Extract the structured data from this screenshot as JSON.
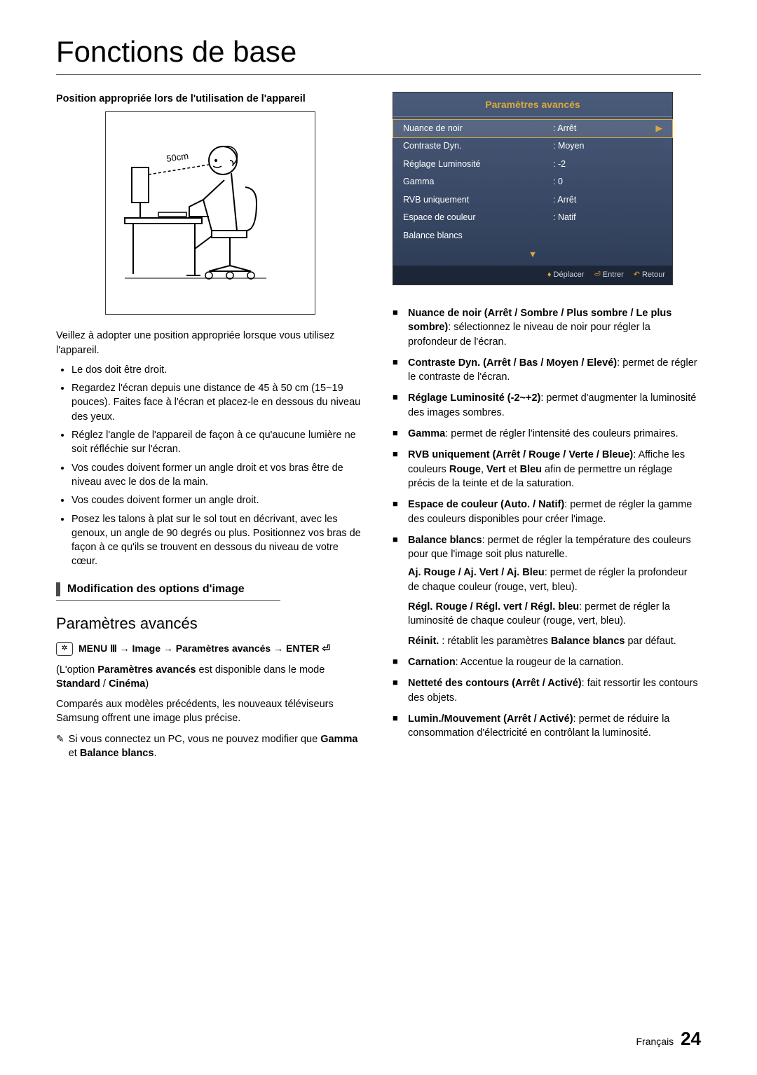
{
  "page": {
    "title": "Fonctions de base",
    "footer_lang": "Français",
    "footer_num": "24"
  },
  "left": {
    "position_heading": "Position appropriée lors de l'utilisation de l'appareil",
    "illustration_label": "50cm",
    "intro": "Veillez à adopter une position appropriée lorsque vous utilisez l'appareil.",
    "bullets": [
      "Le dos doit être droit.",
      "Regardez l'écran depuis une distance de 45 à 50 cm (15~19 pouces). Faites face à l'écran et placez-le en dessous du niveau des yeux.",
      "Réglez l'angle de l'appareil de façon à ce qu'aucune lumière ne soit réfléchie sur l'écran.",
      "Vos coudes doivent former un angle droit et vos bras être de niveau avec le dos de la main.",
      "Vos coudes doivent former un angle droit.",
      "Posez les talons à plat sur le sol tout en décrivant, avec les genoux, un angle de 90 degrés ou plus. Positionnez vos bras de façon à ce qu'ils se trouvent en dessous du niveau de votre cœur."
    ],
    "section_bar": "Modification des options d'image",
    "subtitle": "Paramètres avancés",
    "menu_path": "MENU Ⅲ → Image → Paramètres avancés → ENTER",
    "avail_prefix": "(L'option ",
    "avail_b1": "Paramètres avancés",
    "avail_mid": " est disponible dans le mode ",
    "avail_b2": "Standard",
    "avail_sep": " / ",
    "avail_b3": "Cinéma",
    "avail_suffix": ")",
    "compare": "Comparés aux modèles précédents, les nouveaux téléviseurs Samsung offrent une image plus précise.",
    "note_prefix": "Si vous connectez un PC, vous ne pouvez modifier que ",
    "note_b1": "Gamma",
    "note_and": " et ",
    "note_b2": "Balance blancs",
    "note_suffix": "."
  },
  "osd": {
    "title": "Paramètres avancés",
    "rows": [
      {
        "k": "Nuance de noir",
        "v": ": Arrêt",
        "sel": true,
        "arrow": true
      },
      {
        "k": "Contraste Dyn.",
        "v": ": Moyen",
        "sel": false,
        "arrow": false
      },
      {
        "k": "Réglage Luminosité",
        "v": ": -2",
        "sel": false,
        "arrow": false
      },
      {
        "k": "Gamma",
        "v": ": 0",
        "sel": false,
        "arrow": false
      },
      {
        "k": "RVB uniquement",
        "v": ": Arrêt",
        "sel": false,
        "arrow": false
      },
      {
        "k": "Espace de couleur",
        "v": ": Natif",
        "sel": false,
        "arrow": false
      },
      {
        "k": "Balance blancs",
        "v": "",
        "sel": false,
        "arrow": false
      }
    ],
    "footer": {
      "move": "Déplacer",
      "enter": "Entrer",
      "return": "Retour"
    },
    "colors": {
      "grad_top": "#4a5b7a",
      "grad_bottom": "#2c3a54",
      "accent": "#d9a93d",
      "footer_bg": "#1d2636"
    }
  },
  "right": {
    "items": [
      {
        "b": "Nuance de noir (Arrêt / Sombre / Plus sombre / Le plus sombre)",
        "t": ": sélectionnez le niveau de noir pour régler la profondeur de l'écran."
      },
      {
        "b": "Contraste Dyn. (Arrêt / Bas / Moyen / Elevé)",
        "t": ": permet de régler le contraste de l'écran."
      },
      {
        "b": "Réglage Luminosité (-2~+2)",
        "t": ": permet d'augmenter la luminosité des images sombres."
      },
      {
        "b": "Gamma",
        "t": ": permet de régler l'intensité des couleurs primaires."
      },
      {
        "b": "RVB uniquement (Arrêt / Rouge / Verte / Bleue)",
        "t": ": Affiche les couleurs ",
        "extra": "rvb"
      },
      {
        "b": "Espace de couleur (Auto. / Natif)",
        "t": ": permet de régler la gamme des couleurs disponibles pour créer l'image."
      },
      {
        "b": "Balance blancs",
        "t": ": permet de régler la température des couleurs pour que l'image soit plus naturelle."
      },
      {
        "b": "Carnation",
        "t": ": Accentue la rougeur de la carnation."
      },
      {
        "b": "Netteté des contours (Arrêt / Activé)",
        "t": ": fait ressortir les contours des objets."
      },
      {
        "b": "Lumin./Mouvement (Arrêt / Activé)",
        "t": ": permet de réduire la consommation d'électricité en contrôlant la luminosité."
      }
    ],
    "rvb_rouge": "Rouge",
    "rvb_vert": "Vert",
    "rvb_bleu": "Bleu",
    "rvb_tail": " afin de permettre un réglage précis de la teinte et de la saturation.",
    "bal": {
      "l1b": "Aj. Rouge / Aj. Vert / Aj. Bleu",
      "l1t": ": permet de régler la profondeur de chaque couleur (rouge, vert, bleu).",
      "l2b": "Régl. Rouge / Régl. vert / Régl. bleu",
      "l2t": ": permet de régler la luminosité de chaque couleur (rouge, vert, bleu).",
      "l3b": "Réinit.",
      "l3m": " : rétablit les paramètres ",
      "l3b2": "Balance blancs",
      "l3t": " par défaut."
    }
  }
}
